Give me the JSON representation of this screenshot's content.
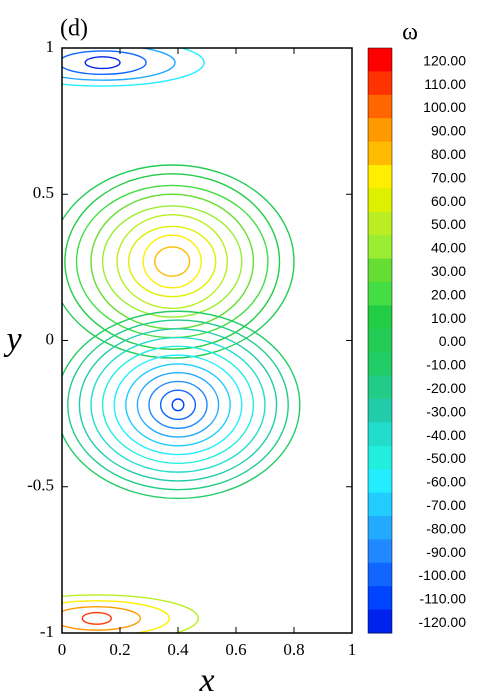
{
  "chart_data": {
    "type": "contour",
    "label": "(d)",
    "xlabel": "x",
    "ylabel": "y",
    "colorbar_title": "ω",
    "xlim": [
      0,
      1
    ],
    "ylim": [
      -1,
      1
    ],
    "xticks": [
      0,
      0.2,
      0.4,
      0.6,
      0.8,
      1
    ],
    "yticks": [
      -1,
      -0.5,
      0,
      0.5,
      1
    ],
    "levels": [
      {
        "value": 120,
        "label": "120.00"
      },
      {
        "value": 110,
        "label": "110.00"
      },
      {
        "value": 100,
        "label": "100.00"
      },
      {
        "value": 90,
        "label": "90.00"
      },
      {
        "value": 80,
        "label": "80.00"
      },
      {
        "value": 70,
        "label": "70.00"
      },
      {
        "value": 60,
        "label": "60.00"
      },
      {
        "value": 50,
        "label": "50.00"
      },
      {
        "value": 40,
        "label": "40.00"
      },
      {
        "value": 30,
        "label": "30.00"
      },
      {
        "value": 20,
        "label": "20.00"
      },
      {
        "value": 10,
        "label": "10.00"
      },
      {
        "value": 0,
        "label": "0.00"
      },
      {
        "value": -10,
        "label": "-10.00"
      },
      {
        "value": -20,
        "label": "-20.00"
      },
      {
        "value": -30,
        "label": "-30.00"
      },
      {
        "value": -40,
        "label": "-40.00"
      },
      {
        "value": -50,
        "label": "-50.00"
      },
      {
        "value": -60,
        "label": "-60.00"
      },
      {
        "value": -70,
        "label": "-70.00"
      },
      {
        "value": -80,
        "label": "-80.00"
      },
      {
        "value": -90,
        "label": "-90.00"
      },
      {
        "value": -100,
        "label": "-100.00"
      },
      {
        "value": -110,
        "label": "-110.00"
      },
      {
        "value": -120,
        "label": "-120.00"
      }
    ],
    "colors": [
      "#ff0000",
      "#ff3300",
      "#ff6600",
      "#ff9900",
      "#ffbb00",
      "#ffee00",
      "#ddf000",
      "#bbee22",
      "#99ee33",
      "#66dd33",
      "#44dd44",
      "#22cc44",
      "#22cc55",
      "#22cc66",
      "#22cc88",
      "#22ccaa",
      "#22ddcc",
      "#22eedd",
      "#22eeff",
      "#22ccff",
      "#22aaff",
      "#2288ff",
      "#1166ff",
      "#0044ff",
      "#0022ee"
    ],
    "contours": [
      {
        "level": 80,
        "x": 0.38,
        "y": 0.27,
        "rx": 0.06,
        "ry": 0.05
      },
      {
        "level": 70,
        "x": 0.38,
        "y": 0.27,
        "rx": 0.1,
        "ry": 0.09
      },
      {
        "level": 60,
        "x": 0.38,
        "y": 0.27,
        "rx": 0.15,
        "ry": 0.12
      },
      {
        "level": 50,
        "x": 0.38,
        "y": 0.27,
        "rx": 0.19,
        "ry": 0.16
      },
      {
        "level": 40,
        "x": 0.38,
        "y": 0.27,
        "rx": 0.24,
        "ry": 0.19
      },
      {
        "level": 30,
        "x": 0.38,
        "y": 0.27,
        "rx": 0.28,
        "ry": 0.23
      },
      {
        "level": 20,
        "x": 0.38,
        "y": 0.27,
        "rx": 0.33,
        "ry": 0.26
      },
      {
        "level": 10,
        "x": 0.38,
        "y": 0.27,
        "rx": 0.37,
        "ry": 0.3
      },
      {
        "level": 0,
        "x": 0.38,
        "y": 0.27,
        "rx": 0.42,
        "ry": 0.33
      },
      {
        "level": -110,
        "x": 0.4,
        "y": -0.22,
        "rx": 0.02,
        "ry": 0.02
      },
      {
        "level": -100,
        "x": 0.4,
        "y": -0.22,
        "rx": 0.06,
        "ry": 0.05
      },
      {
        "level": -90,
        "x": 0.4,
        "y": -0.22,
        "rx": 0.1,
        "ry": 0.08
      },
      {
        "level": -80,
        "x": 0.4,
        "y": -0.22,
        "rx": 0.14,
        "ry": 0.11
      },
      {
        "level": -70,
        "x": 0.4,
        "y": -0.22,
        "rx": 0.18,
        "ry": 0.14
      },
      {
        "level": -60,
        "x": 0.4,
        "y": -0.22,
        "rx": 0.22,
        "ry": 0.17
      },
      {
        "level": -50,
        "x": 0.4,
        "y": -0.22,
        "rx": 0.26,
        "ry": 0.2
      },
      {
        "level": -40,
        "x": 0.4,
        "y": -0.22,
        "rx": 0.3,
        "ry": 0.23
      },
      {
        "level": -30,
        "x": 0.4,
        "y": -0.22,
        "rx": 0.34,
        "ry": 0.26
      },
      {
        "level": -20,
        "x": 0.4,
        "y": -0.22,
        "rx": 0.38,
        "ry": 0.29
      },
      {
        "level": -10,
        "x": 0.4,
        "y": -0.22,
        "rx": 0.42,
        "ry": 0.32
      },
      {
        "level": -120,
        "x": 0.14,
        "y": 0.95,
        "rx": 0.06,
        "ry": 0.02
      },
      {
        "level": -100,
        "x": 0.14,
        "y": 0.95,
        "rx": 0.15,
        "ry": 0.04
      },
      {
        "level": -80,
        "x": 0.14,
        "y": 0.95,
        "rx": 0.25,
        "ry": 0.06
      },
      {
        "level": -60,
        "x": 0.14,
        "y": 0.95,
        "rx": 0.35,
        "ry": 0.08
      },
      {
        "level": 110,
        "x": 0.12,
        "y": -0.95,
        "rx": 0.05,
        "ry": 0.02
      },
      {
        "level": 90,
        "x": 0.12,
        "y": -0.95,
        "rx": 0.15,
        "ry": 0.04
      },
      {
        "level": 70,
        "x": 0.12,
        "y": -0.95,
        "rx": 0.25,
        "ry": 0.06
      },
      {
        "level": 50,
        "x": 0.12,
        "y": -0.95,
        "rx": 0.35,
        "ry": 0.08
      }
    ]
  }
}
